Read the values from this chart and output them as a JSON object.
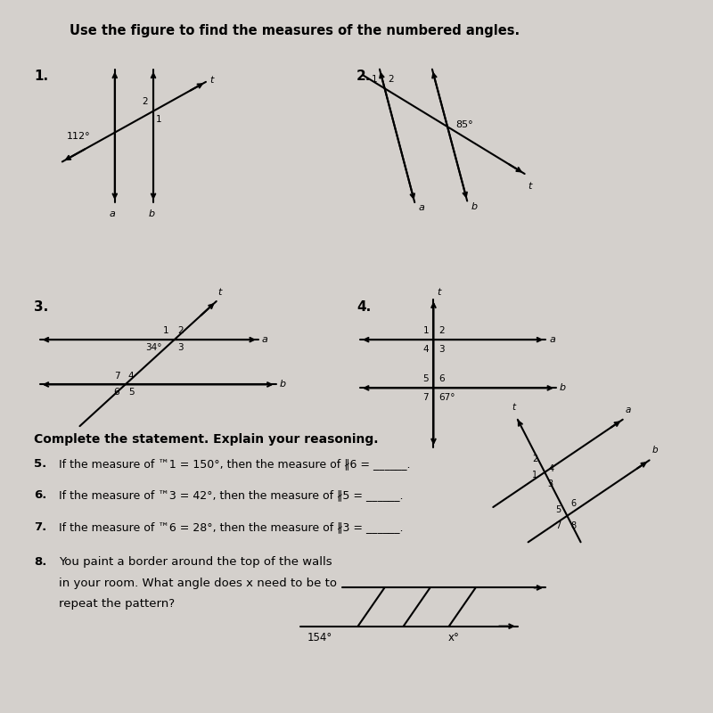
{
  "bg_color": "#d4d0cc",
  "title": "Use the figure to find the measures of the numbered angles.",
  "section_title": "Complete the statement. Explain your reasoning.",
  "item5": "If the measure of ™1 = 150°, then the measure of ∦6 = ______.",
  "item6": "If the measure of ™3 = 42°, then the measure of ∦5 = ______.",
  "item7": "If the measure of ™6 = 28°, then the measure of ∦3 = ______.",
  "item8_text1": "You paint a border around the top of the walls",
  "item8_text2": "in your room. What angle does x need to be to",
  "item8_text3": "repeat the pattern?",
  "label_154": "154°",
  "label_x": "x°"
}
